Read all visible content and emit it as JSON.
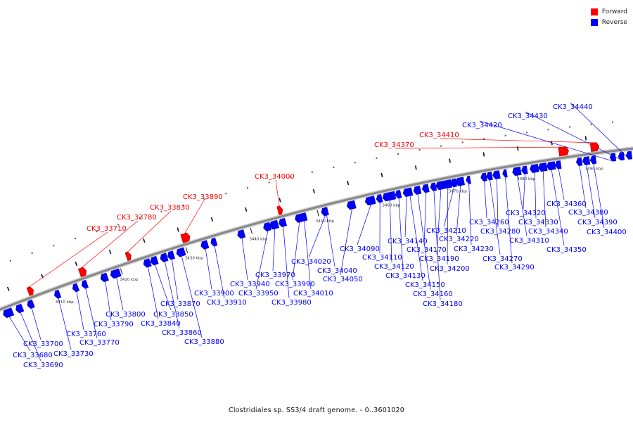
{
  "colors": {
    "forward": "#ff0000",
    "reverse": "#0000ff",
    "forward_dark": "#b00000",
    "reverse_dark": "#0000a8",
    "backbone": "#888888"
  },
  "legend": [
    {
      "label": "Forward",
      "color": "#ff0000"
    },
    {
      "label": "Reverse",
      "color": "#0000ff"
    }
  ],
  "caption": "Clostridiales sp. SS3/4 draft genome. - 0..3601020",
  "scale_ticks": [
    "3410 kbp",
    "3420 kbp",
    "3430 kbp",
    "3440 kbp",
    "3450 kbp",
    "3460 kbp",
    "3470 kbp",
    "3480 kbp",
    "3490 kbp"
  ],
  "genes": [
    {
      "label": "CK3_33680",
      "strand": "reverse"
    },
    {
      "label": "CK3_33690",
      "strand": "reverse"
    },
    {
      "label": "CK3_33700",
      "strand": "reverse"
    },
    {
      "label": "CK3_33710",
      "strand": "forward"
    },
    {
      "label": "CK3_33730",
      "strand": "reverse"
    },
    {
      "label": "CK3_33760",
      "strand": "reverse"
    },
    {
      "label": "CK3_33770",
      "strand": "reverse"
    },
    {
      "label": "CK3_33780",
      "strand": "forward"
    },
    {
      "label": "CK3_33790",
      "strand": "reverse"
    },
    {
      "label": "CK3_33800",
      "strand": "reverse"
    },
    {
      "label": "CK3_33830",
      "strand": "forward"
    },
    {
      "label": "CK3_33840",
      "strand": "reverse"
    },
    {
      "label": "CK3_33850",
      "strand": "reverse"
    },
    {
      "label": "CK3_33860",
      "strand": "reverse"
    },
    {
      "label": "CK3_33870",
      "strand": "reverse"
    },
    {
      "label": "CK3_33880",
      "strand": "reverse"
    },
    {
      "label": "CK3_33890",
      "strand": "forward"
    },
    {
      "label": "CK3_33900",
      "strand": "reverse"
    },
    {
      "label": "CK3_33910",
      "strand": "reverse"
    },
    {
      "label": "CK3_33940",
      "strand": "reverse"
    },
    {
      "label": "CK3_33950",
      "strand": "reverse"
    },
    {
      "label": "CK3_33970",
      "strand": "reverse"
    },
    {
      "label": "CK3_33980",
      "strand": "reverse"
    },
    {
      "label": "CK3_33990",
      "strand": "reverse"
    },
    {
      "label": "CK3_34000",
      "strand": "forward"
    },
    {
      "label": "CK3_34010",
      "strand": "reverse"
    },
    {
      "label": "CK3_34020",
      "strand": "reverse"
    },
    {
      "label": "CK3_34040",
      "strand": "reverse"
    },
    {
      "label": "CK3_34050",
      "strand": "reverse"
    },
    {
      "label": "CK3_34090",
      "strand": "reverse"
    },
    {
      "label": "CK3_34110",
      "strand": "reverse"
    },
    {
      "label": "CK3_34120",
      "strand": "reverse"
    },
    {
      "label": "CK3_34130",
      "strand": "reverse"
    },
    {
      "label": "CK3_34140",
      "strand": "reverse"
    },
    {
      "label": "CK3_34150",
      "strand": "reverse"
    },
    {
      "label": "CK3_34160",
      "strand": "reverse"
    },
    {
      "label": "CK3_34170",
      "strand": "reverse"
    },
    {
      "label": "CK3_34180",
      "strand": "reverse"
    },
    {
      "label": "CK3_34190",
      "strand": "reverse"
    },
    {
      "label": "CK3_34200",
      "strand": "reverse"
    },
    {
      "label": "CK3_34210",
      "strand": "reverse"
    },
    {
      "label": "CK3_34220",
      "strand": "reverse"
    },
    {
      "label": "CK3_34230",
      "strand": "reverse"
    },
    {
      "label": "CK3_34260",
      "strand": "reverse"
    },
    {
      "label": "CK3_34270",
      "strand": "reverse"
    },
    {
      "label": "CK3_34280",
      "strand": "reverse"
    },
    {
      "label": "CK3_34290",
      "strand": "reverse"
    },
    {
      "label": "CK3_34310",
      "strand": "reverse"
    },
    {
      "label": "CK3_34320",
      "strand": "reverse"
    },
    {
      "label": "CK3_34330",
      "strand": "reverse"
    },
    {
      "label": "CK3_34340",
      "strand": "reverse"
    },
    {
      "label": "CK3_34350",
      "strand": "reverse"
    },
    {
      "label": "CK3_34360",
      "strand": "reverse"
    },
    {
      "label": "CK3_34370",
      "strand": "forward"
    },
    {
      "label": "CK3_34380",
      "strand": "reverse"
    },
    {
      "label": "CK3_34390",
      "strand": "reverse"
    },
    {
      "label": "CK3_34400",
      "strand": "reverse"
    },
    {
      "label": "CK3_34410",
      "strand": "forward"
    },
    {
      "label": "CK3_34420",
      "strand": "reverse"
    },
    {
      "label": "CK3_34430",
      "strand": "reverse"
    },
    {
      "label": "CK3_34440",
      "strand": "reverse"
    }
  ]
}
